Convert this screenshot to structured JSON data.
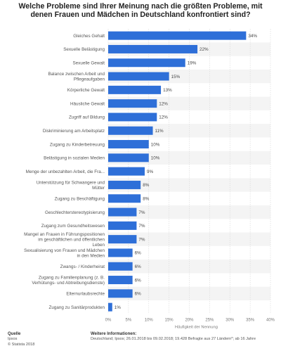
{
  "title_lines": [
    "Welche Probleme sind Ihrer Meinung nach die größten Probleme, mit",
    "denen Frauen und Mädchen in Deutschland konfrontiert sind?"
  ],
  "footer": {
    "source_heading": "Quelle",
    "source_name": "Ipsos",
    "copyright": "© Statista 2018",
    "info_heading": "Weitere Informationen:",
    "info_text": "Deutschland; Ipsos; 26.01.2018 bis 09.02.2018; 19.428 Befragte aus 27 Ländern*; ab 16 Jahre"
  },
  "chart_data": {
    "type": "bar",
    "orientation": "horizontal",
    "categories": [
      "Gleiches Gehalt",
      "Sexuelle Belästigung",
      "Sexuelle Gewalt",
      "Balance zwischen Arbeit und Pflegeaufgaben",
      "Körperliche Gewalt",
      "Häusliche Gewalt",
      "Zugriff auf Bildung",
      "Diskriminierung am Arbeitsplatz",
      "Zugang zu Kinderbetreuung",
      "Belästigung in sozialen Medien",
      "Menge der unbezahlten Arbeit, die Fra...",
      "Unterstützung für Schwangere und Mütter",
      "Zugang zu Beschäftigung",
      "Geschlechterstereotypisierung",
      "Zugang zum Gesundheitswesen",
      "Mangel an Frauen in Führungspositionen im geschäftlichen und öffentlichen Leben",
      "Sexualisierung von Frauen und Mädchen in den Medien",
      "Zwangs- / Kinderheirat",
      "Zugang zu Familienplanung (z. B. Verhütungs- und Abtreibungsdienste)",
      "Elternurlaubsrechte",
      "Zugang zu Sanitärprodukten"
    ],
    "category_lines": [
      [
        "Gleiches Gehalt"
      ],
      [
        "Sexuelle Belästigung"
      ],
      [
        "Sexuelle Gewalt"
      ],
      [
        "Balance zwischen Arbeit und",
        "Pflegeaufgaben"
      ],
      [
        "Körperliche Gewalt"
      ],
      [
        "Häusliche Gewalt"
      ],
      [
        "Zugriff auf Bildung"
      ],
      [
        "Diskriminierung am Arbeitsplatz"
      ],
      [
        "Zugang zu Kinderbetreuung"
      ],
      [
        "Belästigung in sozialen Medien"
      ],
      [
        "Menge der unbezahlten Arbeit, die Fra..."
      ],
      [
        "Unterstützung für Schwangere und",
        "Mütter"
      ],
      [
        "Zugang zu Beschäftigung"
      ],
      [
        "Geschlechterstereotypisierung"
      ],
      [
        "Zugang zum Gesundheitswesen"
      ],
      [
        "Mangel an Frauen in Führungspositionen",
        "im geschäftlichen und öffentlichen",
        "Leben"
      ],
      [
        "Sexualisierung von Frauen und Mädchen",
        "in den Medien"
      ],
      [
        "Zwangs- / Kinderheirat"
      ],
      [
        "Zugang zu Familienplanung (z. B.",
        "Verhütungs- und Abtreibungsdienste)"
      ],
      [
        "Elternurlaubsrechte"
      ],
      [
        "Zugang zu Sanitärprodukten"
      ]
    ],
    "values": [
      34,
      22,
      19,
      15,
      13,
      12,
      12,
      11,
      10,
      10,
      9,
      8,
      8,
      7,
      7,
      7,
      6,
      6,
      6,
      6,
      1
    ],
    "value_labels": [
      "34%",
      "22%",
      "19%",
      "15%",
      "13%",
      "12%",
      "12%",
      "11%",
      "10%",
      "10%",
      "9%",
      "8%",
      "8%",
      "7%",
      "7%",
      "7%",
      "6%",
      "6%",
      "6%",
      "6%",
      "1%"
    ],
    "xlabel": "Häufigkeit der Nennung",
    "xlim": [
      0,
      40
    ],
    "x_ticks": [
      0,
      5,
      10,
      15,
      20,
      25,
      30,
      35,
      40
    ],
    "x_tick_labels": [
      "0%",
      "5%",
      "10%",
      "15%",
      "20%",
      "25%",
      "30%",
      "35%",
      "40%"
    ],
    "grid": true,
    "colors": {
      "bar": "#2e6fd8",
      "grid": "#d8d8d8",
      "band": "#f4f4f4"
    }
  }
}
